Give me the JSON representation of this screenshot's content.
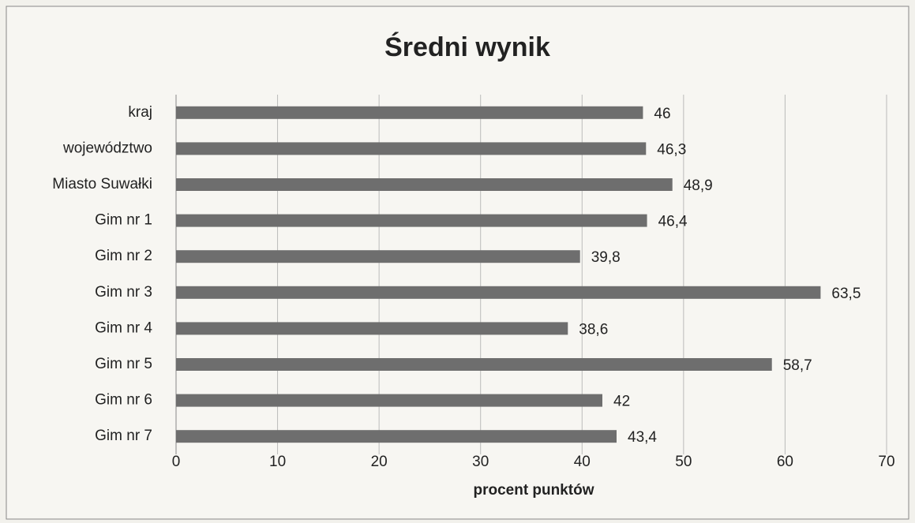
{
  "chart_data": {
    "type": "barh",
    "title": "Średni wynik",
    "categories": [
      "kraj",
      "województwo",
      "Miasto Suwałki",
      "Gim nr 1",
      "Gim nr 2",
      "Gim nr 3",
      "Gim nr 4",
      "Gim nr 5",
      "Gim nr 6",
      "Gim nr 7"
    ],
    "values": [
      46,
      46.3,
      48.9,
      46.4,
      39.8,
      63.5,
      38.6,
      58.7,
      42,
      43.4
    ],
    "value_labels": [
      "46",
      "46,3",
      "48,9",
      "46,4",
      "39,8",
      "63,5",
      "38,6",
      "58,7",
      "42",
      "43,4"
    ],
    "color": "#6e6e6e",
    "xlabel": "procent punktów",
    "xlim": [
      0,
      70
    ],
    "xticks": [
      0,
      10,
      20,
      30,
      40,
      50,
      60,
      70
    ],
    "grid": true
  }
}
